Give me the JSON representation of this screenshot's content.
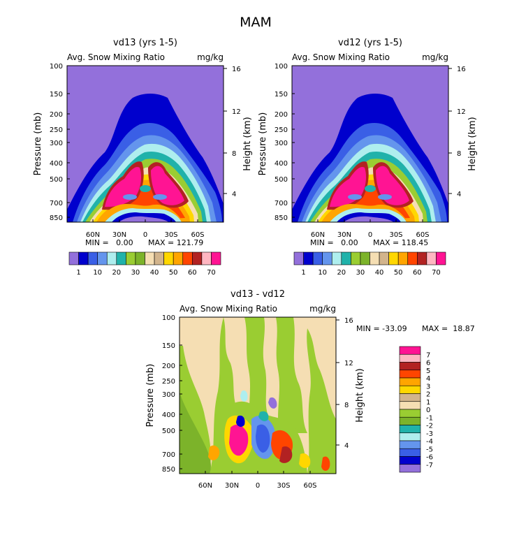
{
  "figure_title": "MAM",
  "chart_data": [
    {
      "type": "heatmap",
      "title": "vd13 (yrs 1-5)",
      "subtitle_left": "Avg. Snow Mixing Ratio",
      "subtitle_right": "mg/kg",
      "ylabel": "Pressure (mb)",
      "y2label": "Height (km)",
      "x_ticks": [
        "60N",
        "30N",
        "0",
        "30S",
        "60S"
      ],
      "x_tick_lat": [
        60,
        30,
        0,
        -30,
        -60
      ],
      "xlim": [
        90,
        -90
      ],
      "y_ticks": [
        100,
        150,
        200,
        250,
        300,
        400,
        500,
        700,
        850
      ],
      "ylim": [
        100,
        900
      ],
      "y2_ticks": [
        16,
        12,
        8,
        4
      ],
      "min_label": "MIN =   0.00",
      "max_label": "MAX = 121.79",
      "min": 0.0,
      "max": 121.79,
      "colorbar": {
        "labels": [
          "1",
          "10",
          "20",
          "30",
          "40",
          "50",
          "60",
          "70"
        ],
        "colors": [
          "#9370DB",
          "#0000CD",
          "#3A5FE6",
          "#6495ED",
          "#AEEEEE",
          "#20B2AA",
          "#9ACD32",
          "#7CB32A",
          "#F5DEB3",
          "#D2B48C",
          "#FFD700",
          "#FFA500",
          "#FF4500",
          "#B22222",
          "#FFB6C1",
          "#FF1493"
        ]
      }
    },
    {
      "type": "heatmap",
      "title": "vd12 (yrs 1-5)",
      "subtitle_left": "Avg. Snow Mixing Ratio",
      "subtitle_right": "mg/kg",
      "ylabel": "Pressure (mb)",
      "y2label": "Height (km)",
      "x_ticks": [
        "60N",
        "30N",
        "0",
        "30S",
        "60S"
      ],
      "x_tick_lat": [
        60,
        30,
        0,
        -30,
        -60
      ],
      "xlim": [
        90,
        -90
      ],
      "y_ticks": [
        100,
        150,
        200,
        250,
        300,
        400,
        500,
        700,
        850
      ],
      "ylim": [
        100,
        900
      ],
      "y2_ticks": [
        16,
        12,
        8,
        4
      ],
      "min_label": "MIN =   0.00",
      "max_label": "MAX = 118.45",
      "min": 0.0,
      "max": 118.45,
      "colorbar": {
        "labels": [
          "1",
          "10",
          "20",
          "30",
          "40",
          "50",
          "60",
          "70"
        ],
        "colors": [
          "#9370DB",
          "#0000CD",
          "#3A5FE6",
          "#6495ED",
          "#AEEEEE",
          "#20B2AA",
          "#9ACD32",
          "#7CB32A",
          "#F5DEB3",
          "#D2B48C",
          "#FFD700",
          "#FFA500",
          "#FF4500",
          "#B22222",
          "#FFB6C1",
          "#FF1493"
        ]
      }
    },
    {
      "type": "heatmap",
      "title": "vd13 - vd12",
      "subtitle_left": "Avg. Snow Mixing Ratio",
      "subtitle_right": "mg/kg",
      "ylabel": "Pressure (mb)",
      "y2label": "Height (km)",
      "x_ticks": [
        "60N",
        "30N",
        "0",
        "30S",
        "60S"
      ],
      "x_tick_lat": [
        60,
        30,
        0,
        -30,
        -60
      ],
      "xlim": [
        90,
        -90
      ],
      "y_ticks": [
        100,
        150,
        200,
        250,
        300,
        400,
        500,
        700,
        850
      ],
      "ylim": [
        100,
        900
      ],
      "y2_ticks": [
        16,
        12,
        8,
        4
      ],
      "min_label": "MIN = -33.09",
      "max_label": "MAX =  18.87",
      "min": -33.09,
      "max": 18.87,
      "colorbar": {
        "labels": [
          "7",
          "6",
          "5",
          "4",
          "3",
          "2",
          "1",
          "0",
          "-1",
          "-2",
          "-3",
          "-4",
          "-5",
          "-6",
          "-7"
        ],
        "colors": [
          "#FF1493",
          "#FFB6C1",
          "#B22222",
          "#FF4500",
          "#FFA500",
          "#FFD700",
          "#D2B48C",
          "#F5DEB3",
          "#9ACD32",
          "#7CB32A",
          "#20B2AA",
          "#AEEEEE",
          "#6495ED",
          "#3A5FE6",
          "#0000CD",
          "#9370DB"
        ]
      }
    }
  ]
}
